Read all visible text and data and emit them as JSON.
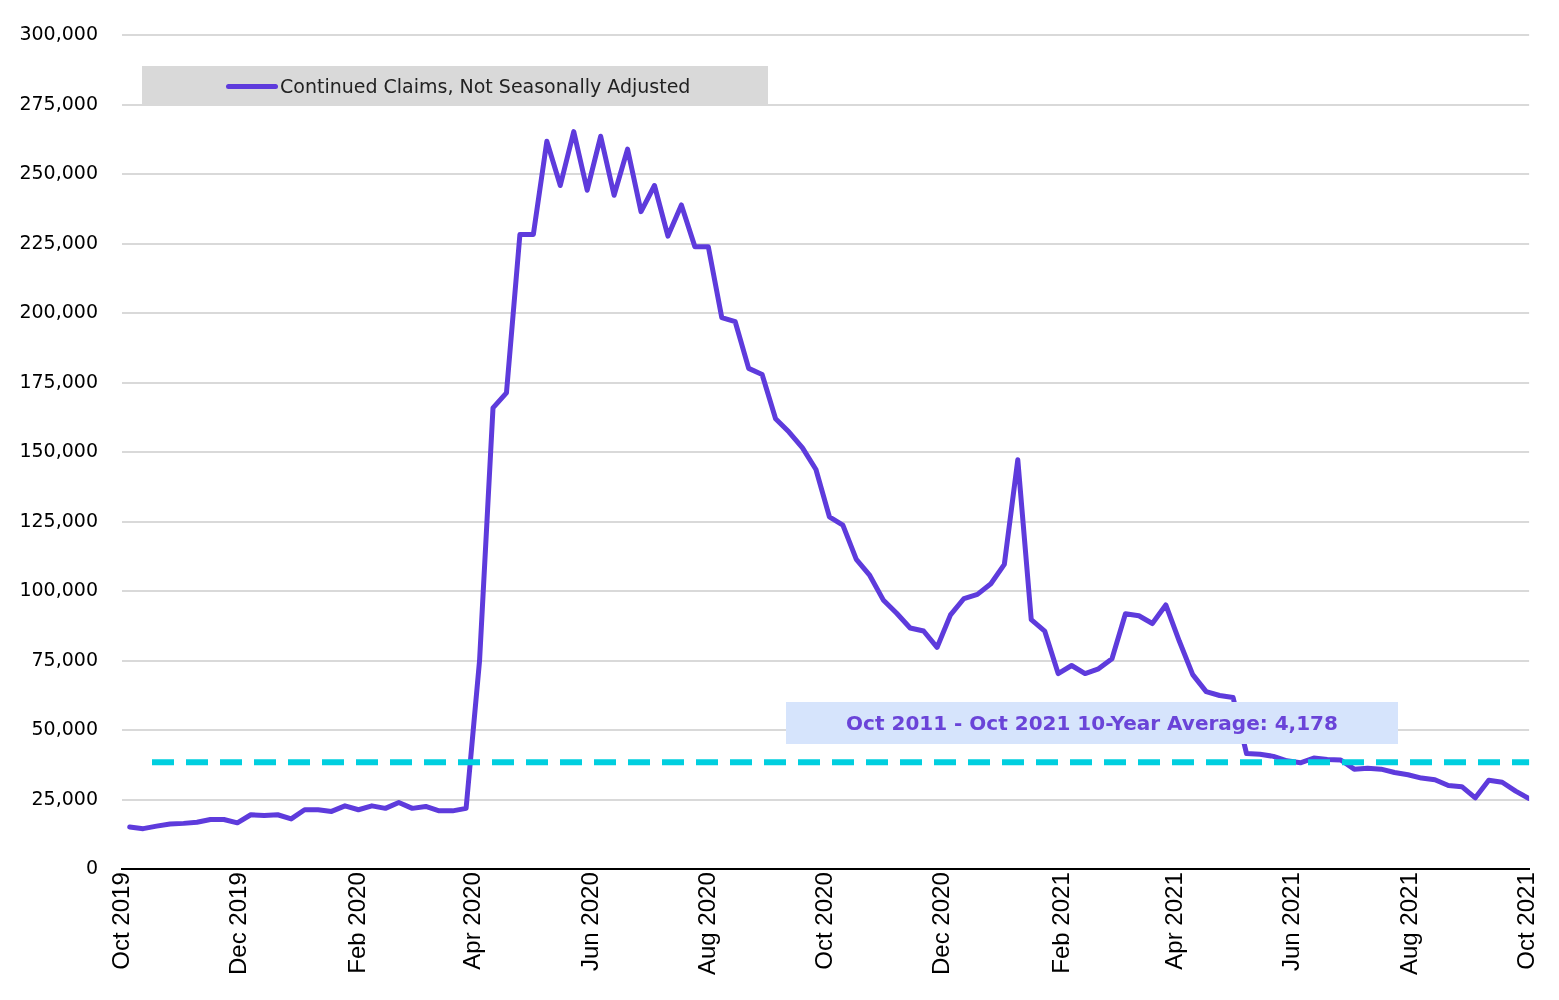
{
  "chart_data": {
    "type": "line",
    "legend": "top left",
    "grid": "y",
    "marker": "none",
    "line_style": "solid",
    "xlim": [
      "2019-10-01",
      "2021-10-02"
    ],
    "xticks": [
      {
        "value": "2019-10-01",
        "label": "Oct 2019"
      },
      {
        "value": "2019-12-01",
        "label": "Dec 2019"
      },
      {
        "value": "2020-02-01",
        "label": "Feb 2020"
      },
      {
        "value": "2020-04-01",
        "label": "Apr 2020"
      },
      {
        "value": "2020-06-01",
        "label": "Jun 2020"
      },
      {
        "value": "2020-08-01",
        "label": "Aug 2020"
      },
      {
        "value": "2020-10-01",
        "label": "Oct 2020"
      },
      {
        "value": "2020-12-01",
        "label": "Dec 2020"
      },
      {
        "value": "2021-02-01",
        "label": "Feb 2021"
      },
      {
        "value": "2021-04-01",
        "label": "Apr 2021"
      },
      {
        "value": "2021-06-01",
        "label": "Jun 2021"
      },
      {
        "value": "2021-08-01",
        "label": "Aug 2021"
      },
      {
        "value": "2021-10-01",
        "label": "Oct 2021"
      }
    ],
    "ylim": [
      0,
      300000
    ],
    "yticks": [
      {
        "value": 0,
        "label": "0"
      },
      {
        "value": 25000,
        "label": "25,000"
      },
      {
        "value": 50000,
        "label": "50,000"
      },
      {
        "value": 75000,
        "label": "75,000"
      },
      {
        "value": 100000,
        "label": "100,000"
      },
      {
        "value": 125000,
        "label": "125,000"
      },
      {
        "value": 150000,
        "label": "150,000"
      },
      {
        "value": 175000,
        "label": "175,000"
      },
      {
        "value": 200000,
        "label": "200,000"
      },
      {
        "value": 225000,
        "label": "225,000"
      },
      {
        "value": 250000,
        "label": "250,000"
      },
      {
        "value": 275000,
        "label": "275,000"
      },
      {
        "value": 300000,
        "label": "300,000"
      }
    ],
    "x": [
      "2019-10-05",
      "2019-10-12",
      "2019-10-19",
      "2019-10-26",
      "2019-11-02",
      "2019-11-09",
      "2019-11-16",
      "2019-11-23",
      "2019-11-30",
      "2019-12-07",
      "2019-12-14",
      "2019-12-21",
      "2019-12-28",
      "2020-01-04",
      "2020-01-11",
      "2020-01-18",
      "2020-01-25",
      "2020-02-01",
      "2020-02-08",
      "2020-02-15",
      "2020-02-22",
      "2020-02-29",
      "2020-03-07",
      "2020-03-14",
      "2020-03-21",
      "2020-03-28",
      "2020-04-04",
      "2020-04-11",
      "2020-04-18",
      "2020-04-25",
      "2020-05-02",
      "2020-05-09",
      "2020-05-16",
      "2020-05-23",
      "2020-05-30",
      "2020-06-06",
      "2020-06-13",
      "2020-06-20",
      "2020-06-27",
      "2020-07-04",
      "2020-07-11",
      "2020-07-18",
      "2020-07-25",
      "2020-08-01",
      "2020-08-08",
      "2020-08-15",
      "2020-08-22",
      "2020-08-29",
      "2020-09-05",
      "2020-09-12",
      "2020-09-19",
      "2020-09-26",
      "2020-10-03",
      "2020-10-10",
      "2020-10-17",
      "2020-10-24",
      "2020-10-31",
      "2020-11-07",
      "2020-11-14",
      "2020-11-21",
      "2020-11-28",
      "2020-12-05",
      "2020-12-12",
      "2020-12-19",
      "2020-12-26",
      "2021-01-02",
      "2021-01-09",
      "2021-01-16",
      "2021-01-23",
      "2021-01-30",
      "2021-02-06",
      "2021-02-13",
      "2021-02-20",
      "2021-02-27",
      "2021-03-06",
      "2021-03-13",
      "2021-03-20",
      "2021-03-27",
      "2021-04-03",
      "2021-04-10",
      "2021-04-17",
      "2021-04-24",
      "2021-05-01",
      "2021-05-08",
      "2021-05-15",
      "2021-05-22",
      "2021-05-29",
      "2021-06-05",
      "2021-06-12",
      "2021-06-19",
      "2021-06-26",
      "2021-07-03",
      "2021-07-10",
      "2021-07-17",
      "2021-07-24",
      "2021-07-31",
      "2021-08-07",
      "2021-08-14",
      "2021-08-21",
      "2021-08-28",
      "2021-09-04",
      "2021-09-11",
      "2021-09-18",
      "2021-09-25",
      "2021-10-02"
    ],
    "series": [
      {
        "name": "Continued Claims, Not Seasonally Adjusted",
        "color": "#5e3bdc",
        "values": [
          15200,
          14600,
          15500,
          16300,
          16500,
          16900,
          17900,
          17900,
          16700,
          19600,
          19300,
          19600,
          18100,
          21400,
          21400,
          20800,
          22800,
          21400,
          22800,
          21900,
          24000,
          21900,
          22600,
          21000,
          21000,
          21900,
          75000,
          166000,
          171400,
          228400,
          228400,
          261900,
          246000,
          265400,
          244300,
          263700,
          242500,
          259100,
          236600,
          246000,
          227800,
          239000,
          224000,
          224000,
          198500,
          197000,
          180200,
          178000,
          162100,
          157300,
          151600,
          143800,
          126800,
          123800,
          111500,
          105700,
          96900,
          92100,
          86800,
          85700,
          79800,
          91500,
          97400,
          98900,
          102700,
          109700,
          147300,
          89800,
          85700,
          70400,
          73300,
          70400,
          72100,
          75700,
          91900,
          91200,
          88400,
          95100,
          82100,
          70000,
          63900,
          62500,
          61800,
          41600,
          41400,
          40600,
          39000,
          38300,
          40000,
          39500,
          39300,
          36000,
          36300,
          36000,
          34800,
          34000,
          32800,
          32200,
          30100,
          29700,
          25700,
          32000,
          31300,
          28100,
          25400
        ]
      }
    ],
    "ref_lines": [
      {
        "axis": "y",
        "value": 38500,
        "color": "#00cfdf",
        "line_style": "dashed"
      }
    ],
    "annotations": [
      "Oct 2011 - Oct 2021 10-Year Average: 4,178"
    ]
  }
}
